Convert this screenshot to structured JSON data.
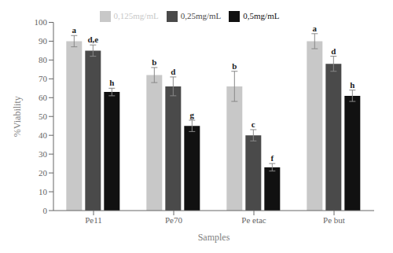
{
  "chart_data": {
    "type": "bar",
    "categories": [
      "Pe11",
      "Pe70",
      "Pe etac",
      "Pe but"
    ],
    "series": [
      {
        "name": "0,125mg/mL",
        "color": "#c8c8c8",
        "values": [
          90,
          72,
          66,
          90
        ],
        "errors": [
          3,
          4,
          8,
          4
        ],
        "labels": [
          "a",
          "b",
          "b",
          "a"
        ]
      },
      {
        "name": "0,25mg/mL",
        "color": "#4a4a4a",
        "values": [
          85,
          66,
          40,
          78
        ],
        "errors": [
          3,
          5,
          3,
          4
        ],
        "labels": [
          "d,e",
          "d",
          "c",
          "d"
        ]
      },
      {
        "name": "0,5mg/mL",
        "color": "#111111",
        "values": [
          63,
          45,
          23,
          61
        ],
        "errors": [
          2,
          3,
          2,
          3
        ],
        "labels": [
          "h",
          "g",
          "f",
          "h"
        ]
      }
    ],
    "xlabel": "Samples",
    "ylabel": "%Viability",
    "ylim": [
      0,
      100
    ],
    "yticks": [
      0,
      10,
      20,
      30,
      40,
      50,
      60,
      70,
      80,
      90,
      100
    ],
    "grid": false,
    "legend": "top"
  }
}
